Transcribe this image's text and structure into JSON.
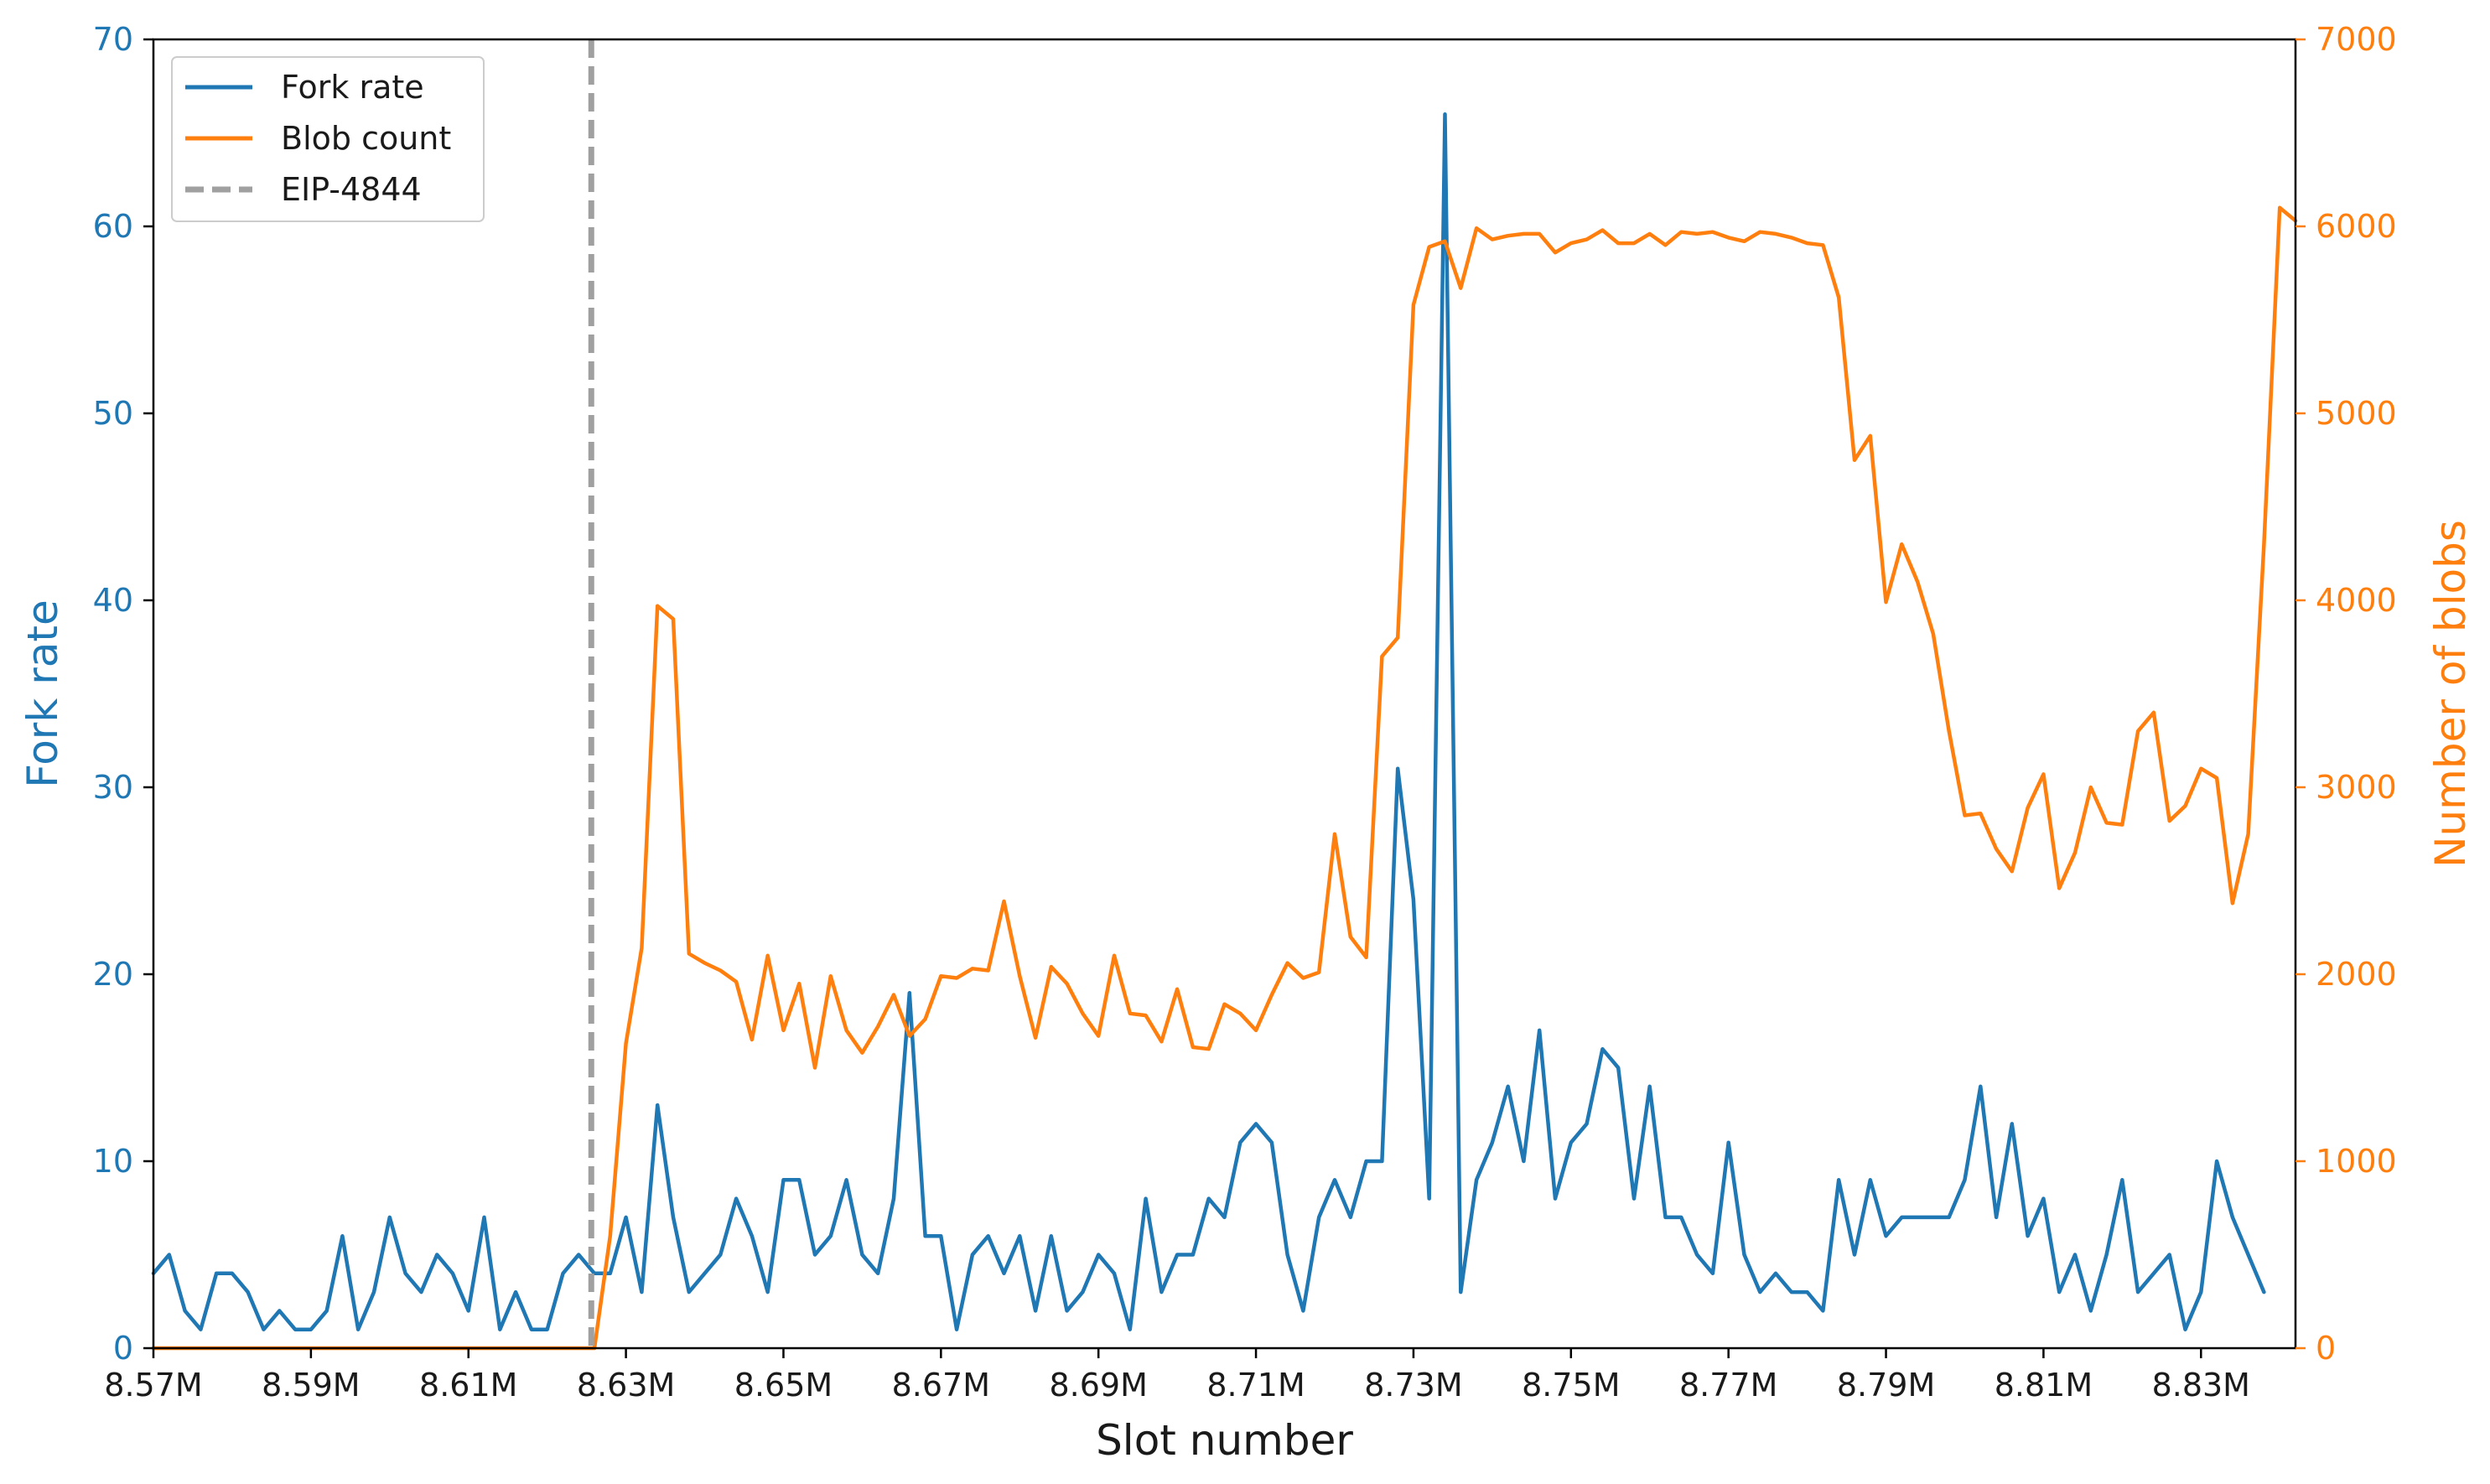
{
  "chart_data": {
    "type": "line",
    "xlabel": "Slot number",
    "y1label": "Fork rate",
    "y2label": "Number of blobs",
    "xlim": [
      8570000,
      8842000
    ],
    "y1lim": [
      0,
      70
    ],
    "y2lim": [
      0,
      7000
    ],
    "xticks": [
      8570000,
      8590000,
      8610000,
      8630000,
      8650000,
      8670000,
      8690000,
      8710000,
      8730000,
      8750000,
      8770000,
      8790000,
      8810000,
      8830000
    ],
    "xtick_labels": [
      "8.57M",
      "8.59M",
      "8.61M",
      "8.63M",
      "8.65M",
      "8.67M",
      "8.69M",
      "8.71M",
      "8.73M",
      "8.75M",
      "8.77M",
      "8.79M",
      "8.81M",
      "8.83M"
    ],
    "y1ticks": [
      0,
      10,
      20,
      30,
      40,
      50,
      60,
      70
    ],
    "y1tick_labels": [
      "0",
      "10",
      "20",
      "30",
      "40",
      "50",
      "60",
      "70"
    ],
    "y2ticks": [
      0,
      1000,
      2000,
      3000,
      4000,
      5000,
      6000,
      7000
    ],
    "y2tick_labels": [
      "0",
      "1000",
      "2000",
      "3000",
      "4000",
      "5000",
      "6000",
      "7000"
    ],
    "grid": false,
    "legend_position": "top-left",
    "legend": [
      "Fork rate",
      "Blob count",
      "EIP-4844"
    ],
    "eip4844_x": 8625600,
    "colors": {
      "fork": "#1f77b4",
      "blob": "#ff7f0e",
      "eip": "#a0a0a0",
      "axis": "#000000"
    },
    "series": [
      {
        "name": "Fork rate",
        "axis": "left",
        "color": "#1f77b4",
        "x_start": 8570000,
        "x_step": 2000,
        "values": [
          4,
          5,
          2,
          1,
          4,
          4,
          3,
          1,
          2,
          1,
          1,
          2,
          6,
          1,
          3,
          7,
          4,
          3,
          5,
          4,
          2,
          7,
          1,
          3,
          1,
          1,
          4,
          5,
          4,
          4,
          7,
          3,
          13,
          7,
          3,
          4,
          5,
          8,
          6,
          3,
          9,
          9,
          5,
          6,
          9,
          5,
          4,
          8,
          19,
          6,
          6,
          1,
          5,
          6,
          4,
          6,
          2,
          6,
          2,
          3,
          5,
          4,
          1,
          8,
          3,
          5,
          5,
          8,
          7,
          11,
          12,
          11,
          5,
          2,
          7,
          9,
          7,
          10,
          10,
          31,
          24,
          8,
          66,
          3,
          9,
          11,
          14,
          10,
          17,
          8,
          11,
          12,
          16,
          15,
          8,
          14,
          7,
          7,
          5,
          4,
          11,
          5,
          3,
          4,
          3,
          3,
          2,
          9,
          5,
          9,
          6,
          7,
          7,
          7,
          7,
          9,
          14,
          7,
          12,
          6,
          8,
          3,
          5,
          2,
          5,
          9,
          3,
          4,
          5,
          1,
          3,
          10,
          7,
          5,
          3
        ]
      },
      {
        "name": "Blob count",
        "axis": "right",
        "color": "#ff7f0e",
        "x_start": 8570000,
        "x_step": 2000,
        "values": [
          0,
          0,
          0,
          0,
          0,
          0,
          0,
          0,
          0,
          0,
          0,
          0,
          0,
          0,
          0,
          0,
          0,
          0,
          0,
          0,
          0,
          0,
          0,
          0,
          0,
          0,
          0,
          0,
          0,
          600,
          1630,
          2140,
          3970,
          3900,
          2110,
          2060,
          2020,
          1960,
          1650,
          2100,
          1700,
          1950,
          1500,
          1990,
          1700,
          1580,
          1720,
          1890,
          1670,
          1760,
          1990,
          1980,
          2030,
          2020,
          2390,
          1990,
          1660,
          2040,
          1950,
          1790,
          1670,
          2100,
          1790,
          1780,
          1640,
          1920,
          1610,
          1600,
          1840,
          1790,
          1700,
          1890,
          2060,
          1980,
          2010,
          2750,
          2200,
          2090,
          3700,
          3800,
          5580,
          5890,
          5920,
          5670,
          5990,
          5930,
          5950,
          5960,
          5960,
          5860,
          5910,
          5930,
          5980,
          5910,
          5910,
          5960,
          5900,
          5970,
          5960,
          5970,
          5940,
          5920,
          5970,
          5960,
          5940,
          5910,
          5900,
          5620,
          4750,
          4880,
          3990,
          4300,
          4100,
          3820,
          3300,
          2850,
          2860,
          2670,
          2550,
          2890,
          3070,
          2460,
          2650,
          3000,
          2810,
          2800,
          3300,
          3400,
          2820,
          2900,
          3100,
          3050,
          2380,
          2750,
          4300,
          6100,
          6030
        ]
      }
    ]
  }
}
